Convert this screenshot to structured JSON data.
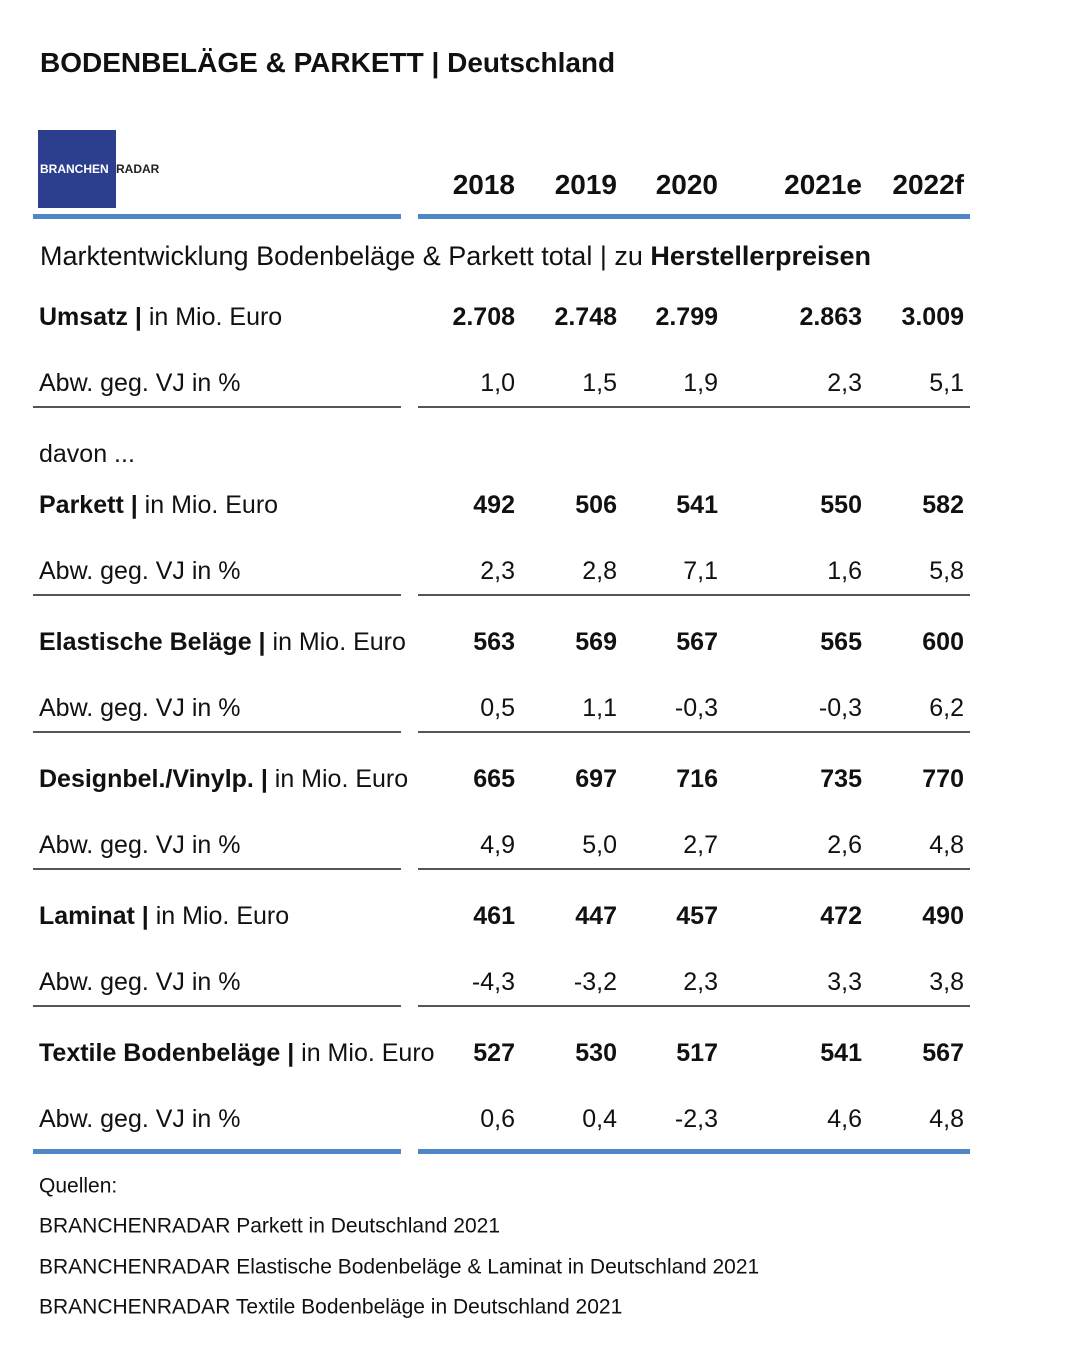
{
  "title": "BODENBELÄGE & PARKETT | Deutschland",
  "logo": {
    "left": "BRANCHEN",
    "right": "RADAR"
  },
  "years": [
    "2018",
    "2019",
    "2020",
    "2021e",
    "2022f"
  ],
  "subtitle": {
    "text": "Marktentwicklung Bodenbeläge & Parkett total | zu",
    "bold": "Herstellerpreisen"
  },
  "davon": "davon ...",
  "sections": [
    {
      "name": "Umsatz |",
      "unit": "in Mio. Euro",
      "values": [
        "2.708",
        "2.748",
        "2.799",
        "2.863",
        "3.009"
      ],
      "change_label": "Abw. geg. VJ in %",
      "change": [
        "1,0",
        "1,5",
        "1,9",
        "2,3",
        "5,1"
      ]
    },
    {
      "name": "Parkett |",
      "unit": "in Mio. Euro",
      "values": [
        "492",
        "506",
        "541",
        "550",
        "582"
      ],
      "change_label": "Abw. geg. VJ in %",
      "change": [
        "2,3",
        "2,8",
        "7,1",
        "1,6",
        "5,8"
      ]
    },
    {
      "name": "Elastische Beläge |",
      "unit": "in Mio. Euro",
      "values": [
        "563",
        "569",
        "567",
        "565",
        "600"
      ],
      "change_label": "Abw. geg. VJ in %",
      "change": [
        "0,5",
        "1,1",
        "-0,3",
        "-0,3",
        "6,2"
      ]
    },
    {
      "name": "Designbel./Vinylp. |",
      "unit": "in Mio. Euro",
      "values": [
        "665",
        "697",
        "716",
        "735",
        "770"
      ],
      "change_label": "Abw. geg. VJ in %",
      "change": [
        "4,9",
        "5,0",
        "2,7",
        "2,6",
        "4,8"
      ]
    },
    {
      "name": "Laminat |",
      "unit": "in Mio. Euro",
      "values": [
        "461",
        "447",
        "457",
        "472",
        "490"
      ],
      "change_label": "Abw. geg. VJ in %",
      "change": [
        "-4,3",
        "-3,2",
        "2,3",
        "3,3",
        "3,8"
      ]
    },
    {
      "name": "Textile Bodenbeläge |",
      "unit": "in Mio. Euro",
      "values": [
        "527",
        "530",
        "517",
        "541",
        "567"
      ],
      "change_label": "Abw. geg. VJ in %",
      "change": [
        "0,6",
        "0,4",
        "-2,3",
        "4,6",
        "4,8"
      ]
    }
  ],
  "sources": {
    "label": "Quellen:",
    "items": [
      "BRANCHENRADAR Parkett in Deutschland 2021",
      "BRANCHENRADAR Elastische Bodenbeläge & Laminat in Deutschland 2021",
      "BRANCHENRADAR Textile Bodenbeläge in Deutschland 2021"
    ]
  }
}
